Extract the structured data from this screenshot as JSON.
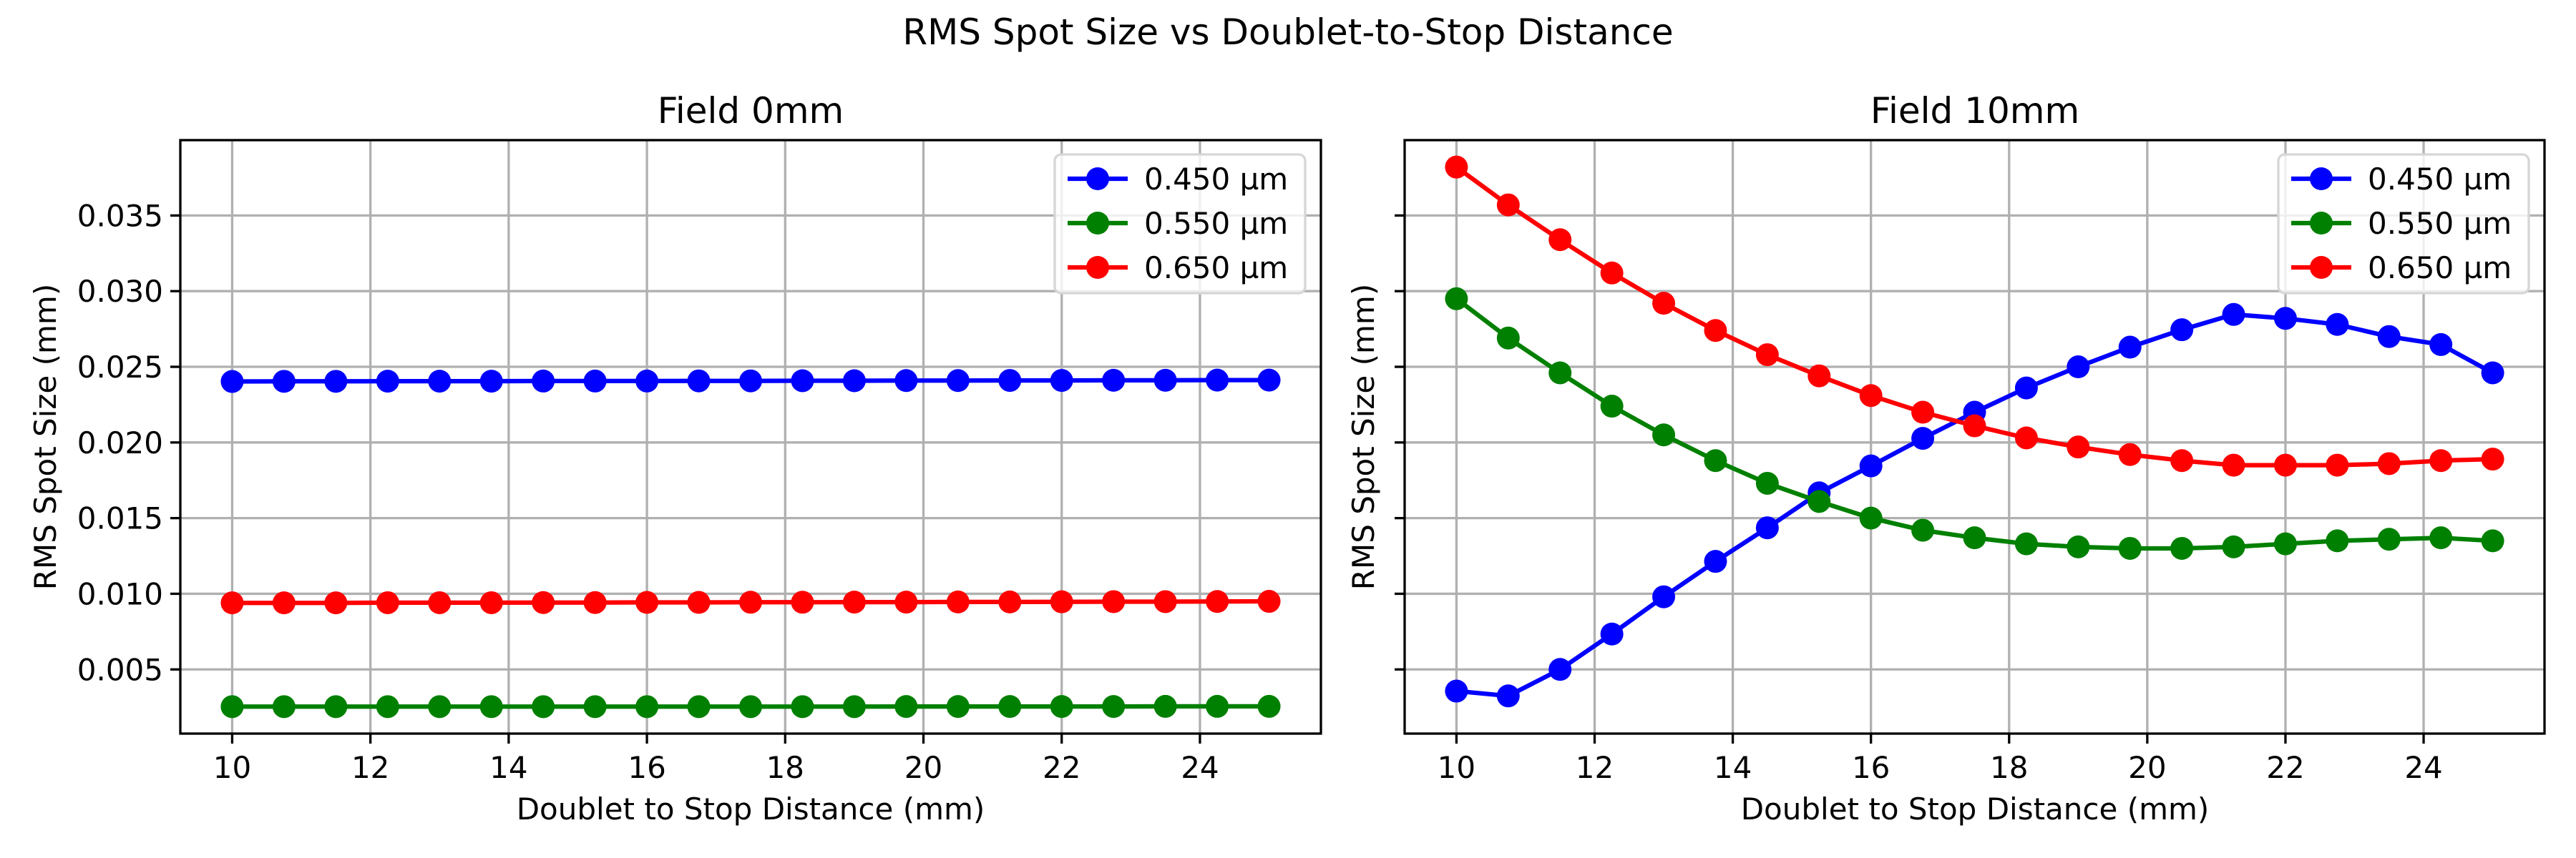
{
  "chart_data": {
    "title": "RMS Spot Size vs Doublet-to-Stop Distance",
    "colors": {
      "0.450 µm": "#0000ff",
      "0.550 µm": "#008000",
      "0.650 µm": "#ff0000"
    },
    "subplots": [
      {
        "type": "line",
        "title": "Field 0mm",
        "xlabel": "Doublet to Stop Distance (mm)",
        "ylabel": "RMS Spot Size (mm)",
        "xlim": [
          9.25,
          25.75
        ],
        "ylim": [
          0.00076,
          0.03998
        ],
        "xticks": [
          10,
          12,
          14,
          16,
          18,
          20,
          22,
          24
        ],
        "yticks": [
          0.005,
          0.01,
          0.015,
          0.02,
          0.025,
          0.03,
          0.035
        ],
        "ytick_labels": [
          "0.005",
          "0.010",
          "0.015",
          "0.020",
          "0.025",
          "0.030",
          "0.035"
        ],
        "grid": true,
        "legend_position": "upper right",
        "x": [
          10,
          10.75,
          11.5,
          12.25,
          13,
          13.75,
          14.5,
          15.25,
          16,
          16.75,
          17.5,
          18.25,
          19,
          19.75,
          20.5,
          21.25,
          22,
          22.75,
          23.5,
          24.25,
          25
        ],
        "series": [
          {
            "name": "0.450 µm",
            "color": "#0000ff",
            "values": [
              0.02403,
              0.02404,
              0.02404,
              0.02405,
              0.02405,
              0.02405,
              0.02406,
              0.02406,
              0.02406,
              0.02407,
              0.02407,
              0.02408,
              0.02408,
              0.02409,
              0.02409,
              0.0241,
              0.0241,
              0.02411,
              0.02411,
              0.02412,
              0.02412
            ]
          },
          {
            "name": "0.550 µm",
            "color": "#008000",
            "values": [
              0.00254,
              0.00254,
              0.00254,
              0.00254,
              0.00254,
              0.00254,
              0.00254,
              0.00254,
              0.00254,
              0.00254,
              0.00254,
              0.00254,
              0.00254,
              0.00255,
              0.00255,
              0.00255,
              0.00255,
              0.00255,
              0.00256,
              0.00256,
              0.00256
            ]
          },
          {
            "name": "0.650 µm",
            "color": "#ff0000",
            "values": [
              0.0094,
              0.0094,
              0.0094,
              0.00941,
              0.00941,
              0.00941,
              0.00942,
              0.00942,
              0.00943,
              0.00943,
              0.00944,
              0.00944,
              0.00945,
              0.00945,
              0.00946,
              0.00946,
              0.00947,
              0.00948,
              0.00948,
              0.00949,
              0.0095
            ]
          }
        ]
      },
      {
        "type": "line",
        "title": "Field 10mm",
        "xlabel": "Doublet to Stop Distance (mm)",
        "ylabel": "RMS Spot Size (mm)",
        "xlim": [
          9.25,
          25.75
        ],
        "ylim": [
          0.00076,
          0.03998
        ],
        "xticks": [
          10,
          12,
          14,
          16,
          18,
          20,
          22,
          24
        ],
        "yticks": [
          0.005,
          0.01,
          0.015,
          0.02,
          0.025,
          0.03,
          0.035
        ],
        "ytick_labels": [],
        "grid": true,
        "legend_position": "upper right",
        "x": [
          10,
          10.75,
          11.5,
          12.25,
          13,
          13.75,
          14.5,
          15.25,
          16,
          16.75,
          17.5,
          18.25,
          19,
          19.75,
          20.5,
          21.25,
          22,
          22.75,
          23.5,
          24.25,
          25
        ],
        "series": [
          {
            "name": "0.450 µm",
            "color": "#0000ff",
            "values": [
              0.00357,
              0.00325,
              0.005,
              0.00734,
              0.0098,
              0.01214,
              0.01436,
              0.01667,
              0.01845,
              0.02027,
              0.022,
              0.0236,
              0.025,
              0.0263,
              0.02745,
              0.02846,
              0.0282,
              0.0278,
              0.027,
              0.02647,
              0.0246
            ]
          },
          {
            "name": "0.550 µm",
            "color": "#008000",
            "values": [
              0.0295,
              0.0269,
              0.0246,
              0.0224,
              0.0205,
              0.0188,
              0.0173,
              0.0161,
              0.015,
              0.0142,
              0.0137,
              0.0133,
              0.0131,
              0.013,
              0.013,
              0.0131,
              0.0133,
              0.0135,
              0.0136,
              0.0137,
              0.0135
            ]
          },
          {
            "name": "0.650 µm",
            "color": "#ff0000",
            "values": [
              0.0382,
              0.0357,
              0.0334,
              0.0312,
              0.0292,
              0.0274,
              0.0258,
              0.0244,
              0.0231,
              0.022,
              0.0211,
              0.0203,
              0.0197,
              0.0192,
              0.0188,
              0.0185,
              0.0185,
              0.0185,
              0.0186,
              0.0188,
              0.0189
            ]
          }
        ]
      }
    ]
  }
}
